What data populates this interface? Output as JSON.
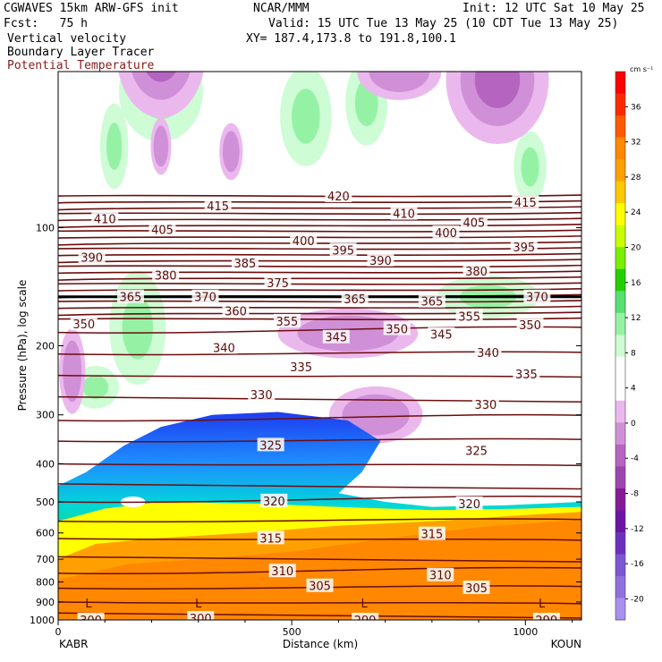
{
  "header": {
    "line1_left": "CGWAVES 15km ARW-GFS init",
    "line1_mid": "NCAR/MMM",
    "line1_right": "Init: 12 UTC Sat 10 May 25",
    "fcst": "Fcst:   75 h",
    "valid": "Valid: 15 UTC Tue 13 May 25 (10 CDT Tue 13 May 25)",
    "field1": "Vertical velocity",
    "field2": "Boundary Layer Tracer",
    "field3": "Potential Temperature",
    "xy": "XY= 187.4,173.8 to 191.8,100.1"
  },
  "colors": {
    "theta": "#6b0d0d",
    "field3_text": "#8b1a1a"
  },
  "chart_data": {
    "type": "heatmap",
    "ylabel": "Pressure (hPa), log scale",
    "xlabel": "Distance (km)",
    "xlim": [
      0,
      1120
    ],
    "ylim": [
      1000,
      40
    ],
    "y_scale": "log",
    "x_ticks": [
      "0",
      "500",
      "1000"
    ],
    "x_tick_values": [
      0,
      500,
      1000
    ],
    "y_ticks": [
      "100",
      "200",
      "300",
      "400",
      "500",
      "600",
      "700",
      "800",
      "900",
      "1000"
    ],
    "y_tick_values": [
      100,
      200,
      300,
      400,
      500,
      600,
      700,
      800,
      900,
      1000
    ],
    "left_endpoint": "KABR",
    "right_endpoint": "KOUN",
    "colorbar": {
      "unit": "cm s⁻¹",
      "labels": [
        "36",
        "32",
        "28",
        "24",
        "20",
        "16",
        "12",
        "8",
        "4",
        "0",
        "-4",
        "-8",
        "-12",
        "-16",
        "-20"
      ],
      "colors": [
        "#ff0000",
        "#ff2a00",
        "#ff5a00",
        "#ff8800",
        "#ffa000",
        "#ffc800",
        "#ffff00",
        "#c8ff00",
        "#78f000",
        "#22d000",
        "#55e070",
        "#95f2a5",
        "#cdfcd5",
        "#ffffff",
        "#ffffff",
        "#ebb8ee",
        "#d090d8",
        "#b565c0",
        "#9e45b0",
        "#871a98",
        "#6c14a6",
        "#6c30c0",
        "#7c58d2",
        "#9070e0",
        "#a890f0"
      ]
    },
    "theta_labels": [
      {
        "v": "420",
        "x": 600,
        "p": 83
      },
      {
        "v": "415",
        "x": 342,
        "p": 88
      },
      {
        "v": "415",
        "x": 1000,
        "p": 86
      },
      {
        "v": "410",
        "x": 100,
        "p": 95
      },
      {
        "v": "410",
        "x": 740,
        "p": 92
      },
      {
        "v": "405",
        "x": 223,
        "p": 101
      },
      {
        "v": "405",
        "x": 890,
        "p": 97
      },
      {
        "v": "400",
        "x": 525,
        "p": 108
      },
      {
        "v": "400",
        "x": 830,
        "p": 103
      },
      {
        "v": "395",
        "x": 610,
        "p": 114
      },
      {
        "v": "395",
        "x": 997,
        "p": 112
      },
      {
        "v": "390",
        "x": 72,
        "p": 119
      },
      {
        "v": "390",
        "x": 690,
        "p": 121
      },
      {
        "v": "385",
        "x": 400,
        "p": 123
      },
      {
        "v": "380",
        "x": 230,
        "p": 132
      },
      {
        "v": "380",
        "x": 895,
        "p": 129
      },
      {
        "v": "375",
        "x": 470,
        "p": 138
      },
      {
        "v": "370",
        "x": 315,
        "p": 150
      },
      {
        "v": "370",
        "x": 1025,
        "p": 150
      },
      {
        "v": "365",
        "x": 155,
        "p": 150
      },
      {
        "v": "365",
        "x": 635,
        "p": 152
      },
      {
        "v": "365",
        "x": 800,
        "p": 154
      },
      {
        "v": "360",
        "x": 380,
        "p": 163
      },
      {
        "v": "355",
        "x": 490,
        "p": 173
      },
      {
        "v": "355",
        "x": 880,
        "p": 168
      },
      {
        "v": "350",
        "x": 55,
        "p": 176
      },
      {
        "v": "350",
        "x": 725,
        "p": 181
      },
      {
        "v": "350",
        "x": 1010,
        "p": 177
      },
      {
        "v": "345",
        "x": 595,
        "p": 190
      },
      {
        "v": "345",
        "x": 820,
        "p": 187
      },
      {
        "v": "340",
        "x": 355,
        "p": 202
      },
      {
        "v": "340",
        "x": 920,
        "p": 208
      },
      {
        "v": "335",
        "x": 520,
        "p": 226
      },
      {
        "v": "335",
        "x": 1002,
        "p": 236
      },
      {
        "v": "330",
        "x": 435,
        "p": 266
      },
      {
        "v": "330",
        "x": 915,
        "p": 282
      },
      {
        "v": "325",
        "x": 455,
        "p": 358
      },
      {
        "v": "325",
        "x": 895,
        "p": 370
      },
      {
        "v": "320",
        "x": 462,
        "p": 497
      },
      {
        "v": "320",
        "x": 880,
        "p": 505
      },
      {
        "v": "315",
        "x": 455,
        "p": 618
      },
      {
        "v": "315",
        "x": 800,
        "p": 603
      },
      {
        "v": "310",
        "x": 480,
        "p": 750
      },
      {
        "v": "310",
        "x": 818,
        "p": 768
      },
      {
        "v": "305",
        "x": 560,
        "p": 818
      },
      {
        "v": "305",
        "x": 895,
        "p": 828
      },
      {
        "v": "300",
        "x": 70,
        "p": 1000
      },
      {
        "v": "300",
        "x": 305,
        "p": 990
      },
      {
        "v": "299",
        "x": 657,
        "p": 1000
      },
      {
        "v": "299",
        "x": 1045,
        "p": 1000
      }
    ],
    "low_marks": [
      {
        "v": "L",
        "x": 65,
        "p": 905
      },
      {
        "v": "L",
        "x": 300,
        "p": 905
      },
      {
        "v": "L",
        "x": 655,
        "p": 905
      },
      {
        "v": "L",
        "x": 1035,
        "p": 905
      }
    ],
    "updraft_blobs": [
      {
        "x": 170,
        "p": 180,
        "rx": 60,
        "rp": 0.08
      },
      {
        "x": 220,
        "p": 45,
        "rx": 90,
        "rp": 0.07
      },
      {
        "x": 660,
        "p": 48,
        "rx": 45,
        "rp": 0.06
      },
      {
        "x": 530,
        "p": 52,
        "rx": 55,
        "rp": 0.07
      },
      {
        "x": 120,
        "p": 62,
        "rx": 30,
        "rp": 0.06
      },
      {
        "x": 1010,
        "p": 70,
        "rx": 35,
        "rp": 0.05
      },
      {
        "x": 920,
        "p": 150,
        "rx": 110,
        "rp": 0.03
      },
      {
        "x": 80,
        "p": 255,
        "rx": 50,
        "rp": 0.03
      }
    ],
    "downdraft_blobs": [
      {
        "x": 220,
        "p": 36,
        "rx": 95,
        "rp": 0.09,
        "level": 3
      },
      {
        "x": 940,
        "p": 42,
        "rx": 110,
        "rp": 0.09,
        "level": 2
      },
      {
        "x": 730,
        "p": 40,
        "rx": 90,
        "rp": 0.04,
        "level": 1
      },
      {
        "x": 220,
        "p": 62,
        "rx": 22,
        "rp": 0.04,
        "level": 1
      },
      {
        "x": 370,
        "p": 64,
        "rx": 25,
        "rp": 0.04,
        "level": 1
      },
      {
        "x": 620,
        "p": 186,
        "rx": 150,
        "rp": 0.035,
        "level": 1
      },
      {
        "x": 680,
        "p": 300,
        "rx": 100,
        "rp": 0.04,
        "level": 1
      },
      {
        "x": 30,
        "p": 232,
        "rx": 28,
        "rp": 0.06,
        "level": 1
      }
    ]
  }
}
